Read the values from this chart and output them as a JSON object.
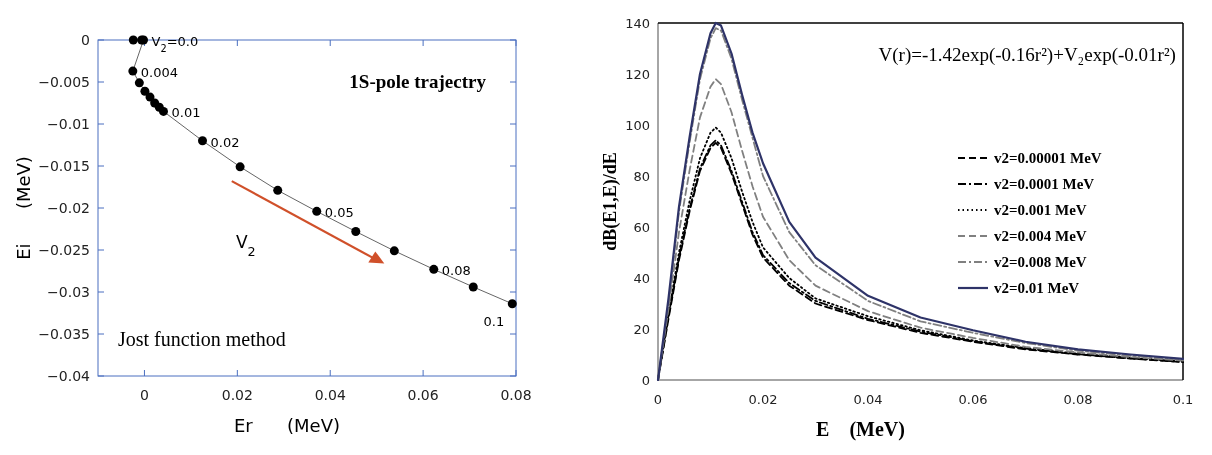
{
  "chart_data": [
    {
      "type": "line",
      "title": "1S-pole trajectry",
      "xlabel": "Er      (MeV)",
      "ylabel": "Ei      (MeV)",
      "xlim": [
        -0.01,
        0.08
      ],
      "ylim": [
        -0.04,
        0
      ],
      "xticks": [
        0,
        0.02,
        0.04,
        0.06,
        0.08
      ],
      "yticks": [
        0,
        -0.005,
        -0.01,
        -0.015,
        -0.02,
        -0.025,
        -0.03,
        -0.035,
        -0.04
      ],
      "grid": false,
      "legend": false,
      "marker": "circle",
      "line_style": "solid",
      "series": [
        {
          "color": "#000000",
          "x": [
            -0.0024,
            -0.0006,
            -0.0002,
            -0.0025,
            -0.0011,
            0.0001,
            0.0012,
            0.0022,
            0.0032,
            0.0041,
            0.0125,
            0.0206,
            0.0287,
            0.0371,
            0.0455,
            0.0538,
            0.0623,
            0.0708,
            0.0792
          ],
          "values": [
            0,
            0,
            0,
            -0.0037,
            -0.0051,
            -0.0061,
            -0.0068,
            -0.0075,
            -0.008,
            -0.0085,
            -0.012,
            -0.0151,
            -0.0179,
            -0.0204,
            -0.0228,
            -0.0251,
            -0.0273,
            -0.0294,
            -0.0314
          ]
        }
      ],
      "annotations": [
        {
          "text": "V$_{2}$=0.0",
          "x": -0.0002,
          "y": 0
        },
        {
          "text": "0.004",
          "x": -0.0025,
          "y": -0.0037
        },
        {
          "text": "0.01",
          "x": 0.0041,
          "y": -0.0085
        },
        {
          "text": "0.02",
          "x": 0.0125,
          "y": -0.012
        },
        {
          "text": "0.05",
          "x": 0.0371,
          "y": -0.0204
        },
        {
          "text": "0.08",
          "x": 0.0623,
          "y": -0.0273
        },
        {
          "text": "0.1",
          "x": 0.0792,
          "y": -0.0314
        },
        "V$_{2}$",
        "Jost function method"
      ]
    },
    {
      "type": "line",
      "xlabel": "E    (MeV)",
      "ylabel": "dB(E1,E)/dE",
      "xlim": [
        0,
        0.1
      ],
      "ylim": [
        0,
        140
      ],
      "xticks": [
        0,
        0.02,
        0.04,
        0.06,
        0.08,
        0.1
      ],
      "yticks": [
        0,
        20,
        40,
        60,
        80,
        100,
        120,
        140
      ],
      "grid": false,
      "legend": "right",
      "marker": "none",
      "x": [
        0,
        0.002,
        0.004,
        0.006,
        0.008,
        0.01,
        0.011,
        0.012,
        0.014,
        0.016,
        0.018,
        0.02,
        0.025,
        0.03,
        0.04,
        0.05,
        0.06,
        0.07,
        0.08,
        0.09,
        0.1
      ],
      "series": [
        {
          "name": "v2=0.00001 MeV",
          "color": "#000000",
          "line_style": "dashed",
          "values": [
            0,
            24,
            47,
            66,
            82,
            91,
            93,
            91,
            81,
            69,
            57,
            48,
            37,
            30,
            23.5,
            18.5,
            15,
            12,
            10,
            8.4,
            7
          ]
        },
        {
          "name": "v2=0.0001 MeV",
          "color": "#000000",
          "line_style": "dashdot",
          "values": [
            0,
            25,
            48,
            67,
            83,
            92,
            94,
            92,
            82,
            70,
            58,
            49,
            38,
            31,
            24,
            19,
            15.2,
            12.3,
            10.1,
            8.5,
            7.1
          ]
        },
        {
          "name": "v2=0.001 MeV",
          "color": "#000000",
          "line_style": "dotted",
          "values": [
            0,
            26,
            50,
            70,
            87,
            97,
            99,
            97,
            87,
            74,
            62,
            52,
            40,
            32,
            25,
            19.5,
            15.5,
            12.5,
            10.3,
            8.7,
            7.3
          ]
        },
        {
          "name": "v2=0.004 MeV",
          "color": "#808080",
          "line_style": "dashed",
          "values": [
            0,
            28,
            58,
            82,
            103,
            115,
            118,
            116,
            105,
            90,
            76,
            64,
            47,
            37,
            27,
            20.5,
            16.5,
            13,
            10.8,
            9,
            7.6
          ]
        },
        {
          "name": "v2=0.008 MeV",
          "color": "#808080",
          "line_style": "dashdot",
          "values": [
            0,
            30,
            66,
            93,
            118,
            134,
            138,
            137,
            126,
            110,
            95,
            80,
            58,
            45,
            31,
            23,
            18.5,
            14.5,
            11.5,
            9.5,
            8
          ]
        },
        {
          "name": "v2=0.01 MeV",
          "color": "#2e3368",
          "line_style": "solid",
          "values": [
            0,
            32,
            68,
            95,
            120,
            136,
            140,
            139,
            128,
            112,
            97,
            85,
            62,
            48,
            33,
            24.5,
            19.5,
            15,
            12,
            10,
            8.3
          ]
        }
      ],
      "annotations": [
        "V(r)=-1.42exp(-0.16r²)+V₂exp(-0.01r²)"
      ]
    }
  ]
}
